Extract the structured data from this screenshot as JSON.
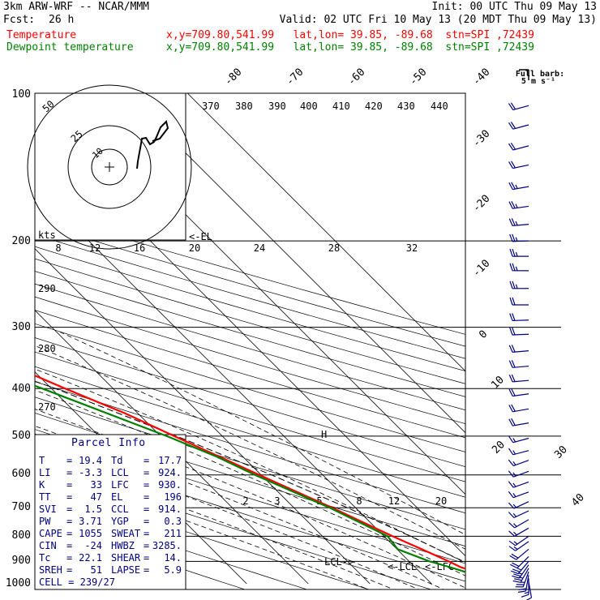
{
  "header": {
    "line1_left": "3km ARW-WRF -- NCAR/MMM",
    "line1_right": "Init: 00 UTC Thu 09 May 13",
    "fcst_label": "Fcst:",
    "fcst_value": "26 h",
    "valid": "Valid: 02 UTC Fri 10 May 13 (20 MDT Thu 09 May 13)",
    "temp_label": "Temperature",
    "dew_label": "Dewpoint temperature",
    "location": "x,y=709.80,541.99   lat,lon= 39.85, -89.68  stn=SPI ,72439"
  },
  "colors": {
    "temperature": "#ff0000",
    "dewpoint": "#008000",
    "parcel": "#000000",
    "info_text": "#000080",
    "wind": "#000080"
  },
  "pressure_labels": [
    "100",
    "200",
    "300",
    "400",
    "500",
    "600",
    "700",
    "800",
    "900",
    "1000"
  ],
  "temperature_labels": [
    "-80",
    "-70",
    "-60",
    "-50",
    "-40",
    "-30",
    "-20",
    "-10",
    "0",
    "10",
    "20",
    "30",
    "40"
  ],
  "theta_labels": [
    "370",
    "380",
    "390",
    "400",
    "410",
    "420",
    "430",
    "440",
    "290",
    "280",
    "270"
  ],
  "hodograph": {
    "ring_labels": [
      "25",
      "50",
      "10"
    ],
    "kts_label": "kts",
    "axis_labels": [
      "8",
      "12",
      "16",
      "20",
      "24",
      "28",
      "32"
    ]
  },
  "mixing_ratio_labels": [
    "2",
    "3",
    "5",
    "8",
    "12",
    "20"
  ],
  "annotations": {
    "el": "<-EL",
    "lcl_left": "LCL->",
    "lcl_right": "<-LCL",
    "lfc": "<-LFC",
    "frz": "H"
  },
  "barb_legend": {
    "title": "Full barb:",
    "unit": "5 m s⁻¹"
  },
  "parcel_info": {
    "title": "Parcel Info",
    "rows": [
      {
        "l": "T",
        "lv": "19.4",
        "r": "Td",
        "rv": "17.7"
      },
      {
        "l": "LI",
        "lv": "-3.3",
        "r": "LCL",
        "rv": "924."
      },
      {
        "l": "K",
        "lv": "33",
        "r": "LFC",
        "rv": "930."
      },
      {
        "l": "TT",
        "lv": "47",
        "r": "EL",
        "rv": "196"
      },
      {
        "l": "SVI",
        "lv": "1.5",
        "r": "CCL",
        "rv": "914."
      },
      {
        "l": "PW",
        "lv": "3.71",
        "r": "YGP",
        "rv": "0.3"
      },
      {
        "l": "CAPE",
        "lv": "1055",
        "r": "SWEAT",
        "rv": "211"
      },
      {
        "l": "CIN",
        "lv": "-24",
        "r": "HWBZ",
        "rv": "3285."
      },
      {
        "l": "Tc",
        "lv": "22.1",
        "r": "SHEAR",
        "rv": "14."
      },
      {
        "l": "SREH",
        "lv": "51",
        "r": "LAPSE",
        "rv": "5.9"
      }
    ],
    "cell_label": "CELL",
    "cell_value": "239/27"
  },
  "chart_data": {
    "type": "line",
    "ylabel": "",
    "xlabel": "",
    "y_scale": "log-pressure (hPa)",
    "series": [
      {
        "name": "Temperature",
        "points": [
          [
            1000,
            22.1
          ],
          [
            975,
            21.0
          ],
          [
            950,
            19.4
          ],
          [
            925,
            17.4
          ],
          [
            900,
            16.4
          ],
          [
            850,
            14.0
          ],
          [
            800,
            11.4
          ],
          [
            700,
            6.2
          ],
          [
            600,
            -0.3
          ],
          [
            500,
            -7.8
          ],
          [
            450,
            -12.0
          ],
          [
            400,
            -17.8
          ],
          [
            350,
            -23.9
          ],
          [
            300,
            -31.0
          ],
          [
            250,
            -39.5
          ],
          [
            220,
            -46.0
          ],
          [
            200,
            -53.2
          ],
          [
            180,
            -57.0
          ],
          [
            160,
            -57.0
          ],
          [
            140,
            -56.2
          ],
          [
            120,
            -57.2
          ],
          [
            100,
            -61.0
          ]
        ]
      },
      {
        "name": "Dewpoint temperature",
        "points": [
          [
            975,
            19.4
          ],
          [
            950,
            17.7
          ],
          [
            925,
            15.7
          ],
          [
            900,
            13.3
          ],
          [
            850,
            10.1
          ],
          [
            800,
            10.6
          ],
          [
            750,
            8.3
          ],
          [
            700,
            5.8
          ],
          [
            600,
            -1.0
          ],
          [
            550,
            -4.3
          ],
          [
            500,
            -9.0
          ],
          [
            400,
            -21.5
          ],
          [
            300,
            -38.0
          ],
          [
            250,
            -49.5
          ],
          [
            200,
            -64.5
          ],
          [
            180,
            -66.0
          ],
          [
            160,
            -65.5
          ],
          [
            140,
            -67.5
          ],
          [
            120,
            -67.0
          ],
          [
            100,
            -70.0
          ]
        ]
      }
    ],
    "parcel_path": [
      [
        930,
        20.3
      ],
      [
        900,
        18.8
      ],
      [
        800,
        14.3
      ],
      [
        700,
        8.7
      ],
      [
        600,
        1.7
      ],
      [
        500,
        -7.4
      ],
      [
        400,
        -19.4
      ],
      [
        300,
        -37.0
      ],
      [
        250,
        -49.6
      ],
      [
        196,
        -64.0
      ]
    ],
    "winds_ms": [
      {
        "p": 990,
        "dir": 170,
        "spd": 6
      },
      {
        "p": 975,
        "dir": 180,
        "spd": 9
      },
      {
        "p": 960,
        "dir": 190,
        "spd": 11
      },
      {
        "p": 945,
        "dir": 200,
        "spd": 13
      },
      {
        "p": 930,
        "dir": 210,
        "spd": 14
      },
      {
        "p": 915,
        "dir": 215,
        "spd": 14
      },
      {
        "p": 900,
        "dir": 220,
        "spd": 13
      },
      {
        "p": 880,
        "dir": 225,
        "spd": 12
      },
      {
        "p": 850,
        "dir": 230,
        "spd": 10
      },
      {
        "p": 820,
        "dir": 235,
        "spd": 9
      },
      {
        "p": 800,
        "dir": 235,
        "spd": 9
      },
      {
        "p": 770,
        "dir": 240,
        "spd": 9
      },
      {
        "p": 740,
        "dir": 240,
        "spd": 8
      },
      {
        "p": 710,
        "dir": 245,
        "spd": 8
      },
      {
        "p": 680,
        "dir": 245,
        "spd": 8
      },
      {
        "p": 650,
        "dir": 250,
        "spd": 8
      },
      {
        "p": 620,
        "dir": 250,
        "spd": 8
      },
      {
        "p": 590,
        "dir": 250,
        "spd": 8
      },
      {
        "p": 560,
        "dir": 250,
        "spd": 9
      },
      {
        "p": 535,
        "dir": 255,
        "spd": 9
      },
      {
        "p": 505,
        "dir": 255,
        "spd": 9
      },
      {
        "p": 470,
        "dir": 260,
        "spd": 10
      },
      {
        "p": 440,
        "dir": 260,
        "spd": 10
      },
      {
        "p": 410,
        "dir": 262,
        "spd": 10
      },
      {
        "p": 385,
        "dir": 265,
        "spd": 10
      },
      {
        "p": 360,
        "dir": 265,
        "spd": 10
      },
      {
        "p": 335,
        "dir": 265,
        "spd": 11
      },
      {
        "p": 310,
        "dir": 268,
        "spd": 11
      },
      {
        "p": 290,
        "dir": 268,
        "spd": 12
      },
      {
        "p": 270,
        "dir": 270,
        "spd": 12
      },
      {
        "p": 250,
        "dir": 270,
        "spd": 13
      },
      {
        "p": 230,
        "dir": 270,
        "spd": 13
      },
      {
        "p": 215,
        "dir": 270,
        "spd": 14
      },
      {
        "p": 200,
        "dir": 268,
        "spd": 14
      },
      {
        "p": 185,
        "dir": 265,
        "spd": 14
      },
      {
        "p": 170,
        "dir": 262,
        "spd": 13
      },
      {
        "p": 155,
        "dir": 260,
        "spd": 13
      },
      {
        "p": 140,
        "dir": 258,
        "spd": 12
      },
      {
        "p": 128,
        "dir": 255,
        "spd": 12
      },
      {
        "p": 116,
        "dir": 255,
        "spd": 11
      },
      {
        "p": 106,
        "dir": 255,
        "spd": 11
      }
    ]
  }
}
